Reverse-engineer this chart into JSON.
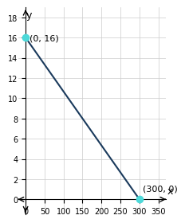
{
  "points": [
    [
      0,
      16
    ],
    [
      300,
      0
    ]
  ],
  "point_labels": [
    "(0, 16)",
    "(300, 0)"
  ],
  "point_color": "#4dd9d9",
  "line_color": "#1a3a5c",
  "xlim": [
    -20,
    370
  ],
  "ylim": [
    -1.5,
    19
  ],
  "xticks": [
    0,
    50,
    100,
    150,
    200,
    250,
    300,
    350
  ],
  "yticks": [
    0,
    2,
    4,
    6,
    8,
    10,
    12,
    14,
    16,
    18
  ],
  "xlabel": "x",
  "ylabel": "y",
  "label_fontsize": 9,
  "tick_fontsize": 7,
  "grid_color": "#cccccc",
  "background_color": "#ffffff"
}
